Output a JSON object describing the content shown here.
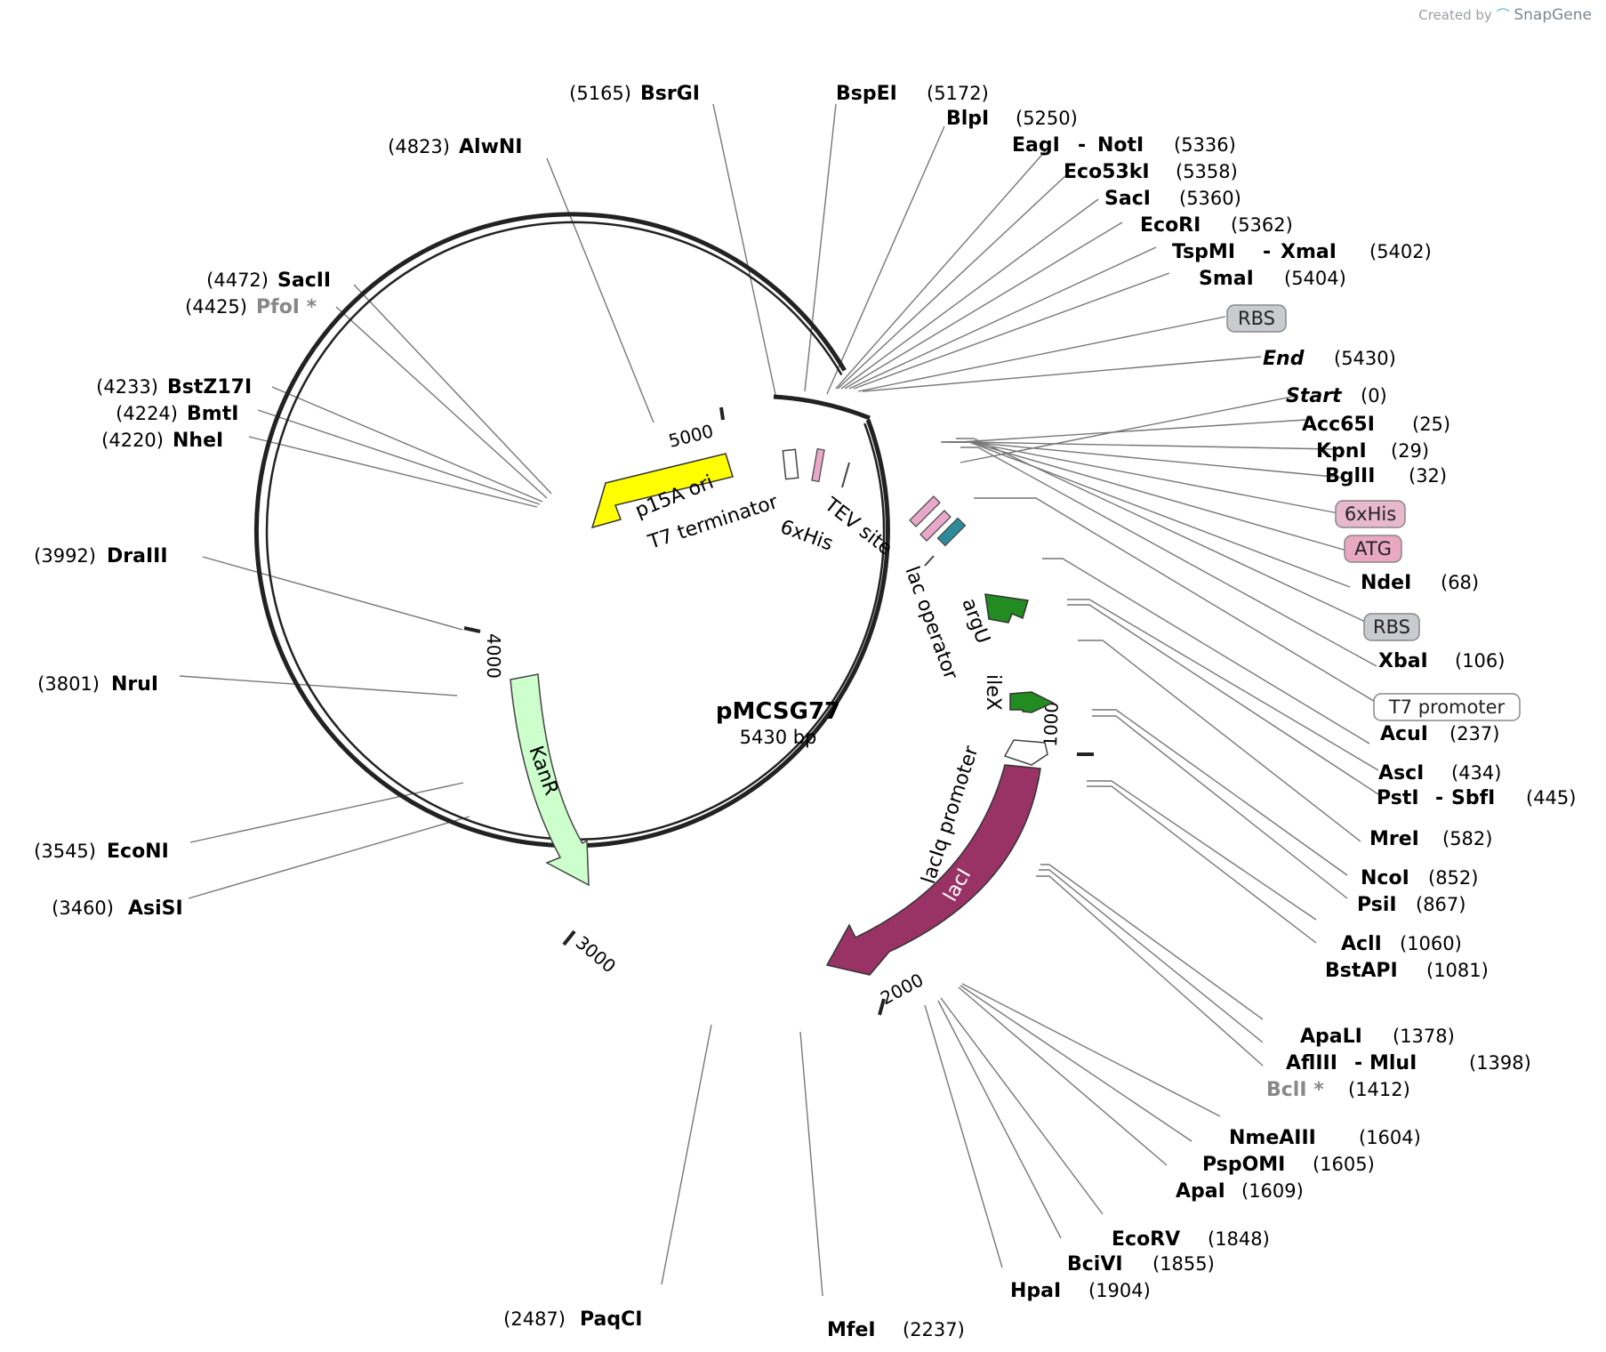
{
  "credit": {
    "prefix": "Created by",
    "brand": "SnapGene"
  },
  "plasmid": {
    "name": "pMCSG77",
    "size_label": "5430 bp",
    "length_bp": 5430
  },
  "ticks": [
    "1000",
    "2000",
    "3000",
    "4000",
    "5000"
  ],
  "features": [
    {
      "name": "p15A ori",
      "color": "#ffff00",
      "shape": "arrow"
    },
    {
      "name": "KanR",
      "color": "#ccffcc",
      "shape": "arrow"
    },
    {
      "name": "lacI",
      "color": "#993366",
      "shape": "arrow"
    },
    {
      "name": "lacIq promoter",
      "color": "#ffffff",
      "shape": "arrow"
    },
    {
      "name": "argU",
      "color": "#228b22",
      "shape": "arrow"
    },
    {
      "name": "ileX",
      "color": "#228b22",
      "shape": "arrow"
    },
    {
      "name": "lac operator",
      "color": "#ffffff",
      "shape": "label"
    },
    {
      "name": "TEV site",
      "color": "#e8a8c8",
      "shape": "label"
    },
    {
      "name": "6xHis",
      "color": "#e8a8c8",
      "shape": "label"
    },
    {
      "name": "T7 terminator",
      "color": "#ffffff",
      "shape": "label"
    }
  ],
  "sites": {
    "sb": {
      "name": "SacII",
      "pos": "(4472)"
    },
    "pf": {
      "name": "PfoI *",
      "pos": "(4425)"
    },
    "bz": {
      "name": "BstZ17I",
      "pos": "(4233)"
    },
    "bm": {
      "name": "BmtI",
      "pos": "(4224)"
    },
    "nh": {
      "name": "NheI",
      "pos": "(4220)"
    },
    "aw": {
      "name": "AlwNI",
      "pos": "(4823)"
    },
    "bg": {
      "name": "BsrGI",
      "pos": "(5165)"
    },
    "dr": {
      "name": "DraIII",
      "pos": "(3992)"
    },
    "nr": {
      "name": "NruI",
      "pos": "(3801)"
    },
    "ec": {
      "name": "EcoNI",
      "pos": "(3545)"
    },
    "as": {
      "name": "AsiSI",
      "pos": "(3460)"
    },
    "pq": {
      "name": "PaqCI",
      "pos": "(2487)"
    },
    "mf": {
      "name": "MfeI",
      "pos": "(2237)"
    },
    "hp": {
      "name": "HpaI",
      "pos": "(1904)"
    },
    "bc": {
      "name": "BciVI",
      "pos": "(1855)"
    },
    "ev": {
      "name": "EcoRV",
      "pos": "(1848)"
    },
    "ap": {
      "name": "ApaI",
      "pos": "(1609)"
    },
    "po": {
      "name": "PspOMI",
      "pos": "(1605)"
    },
    "nm": {
      "name": "NmeAIII",
      "pos": "(1604)"
    },
    "bcl": {
      "name": "BclI *",
      "pos": "(1412)"
    },
    "af": {
      "name": "AflIII",
      "name2": "MluI",
      "pos": "(1398)"
    },
    "apl": {
      "name": "ApaLI",
      "pos": "(1378)"
    },
    "bst": {
      "name": "BstAPI",
      "pos": "(1081)"
    },
    "acl": {
      "name": "AclI",
      "pos": "(1060)"
    },
    "psi": {
      "name": "PsiI",
      "pos": "(867)"
    },
    "nco": {
      "name": "NcoI",
      "pos": "(852)"
    },
    "mre": {
      "name": "MreI",
      "pos": "(582)"
    },
    "pst": {
      "name": "PstI",
      "name2": "SbfI",
      "pos": "(445)"
    },
    "asc": {
      "name": "AscI",
      "pos": "(434)"
    },
    "acu": {
      "name": "AcuI",
      "pos": "(237)"
    },
    "xba": {
      "name": "XbaI",
      "pos": "(106)"
    },
    "nde": {
      "name": "NdeI",
      "pos": "(68)"
    },
    "bgl": {
      "name": "BglII",
      "pos": "(32)"
    },
    "kpn": {
      "name": "KpnI",
      "pos": "(29)"
    },
    "acc": {
      "name": "Acc65I",
      "pos": "(25)"
    },
    "start": {
      "name": "Start",
      "pos": "(0)"
    },
    "end": {
      "name": "End",
      "pos": "(5430)"
    },
    "sma": {
      "name": "SmaI",
      "pos": "(5404)"
    },
    "tsp": {
      "name": "TspMI",
      "name2": "XmaI",
      "pos": "(5402)"
    },
    "eco": {
      "name": "EcoRI",
      "pos": "(5362)"
    },
    "sac": {
      "name": "SacI",
      "pos": "(5360)"
    },
    "e53": {
      "name": "Eco53kI",
      "pos": "(5358)"
    },
    "eag": {
      "name": "EagI",
      "name2": "NotI",
      "pos": "(5336)"
    },
    "blp": {
      "name": "BlpI",
      "pos": "(5250)"
    },
    "bsp": {
      "name": "BspEI",
      "pos": "(5172)"
    }
  },
  "boxes": {
    "rbs1": "RBS",
    "his": "6xHis",
    "atg": "ATG",
    "rbs2": "RBS",
    "t7p": "T7 promoter"
  },
  "colors": {
    "backbone": "#222222",
    "leader": "#777777",
    "rbs_box": "#c8c8c8",
    "his_box": "#e8b8cc",
    "atg_box": "#e8a8c0"
  }
}
